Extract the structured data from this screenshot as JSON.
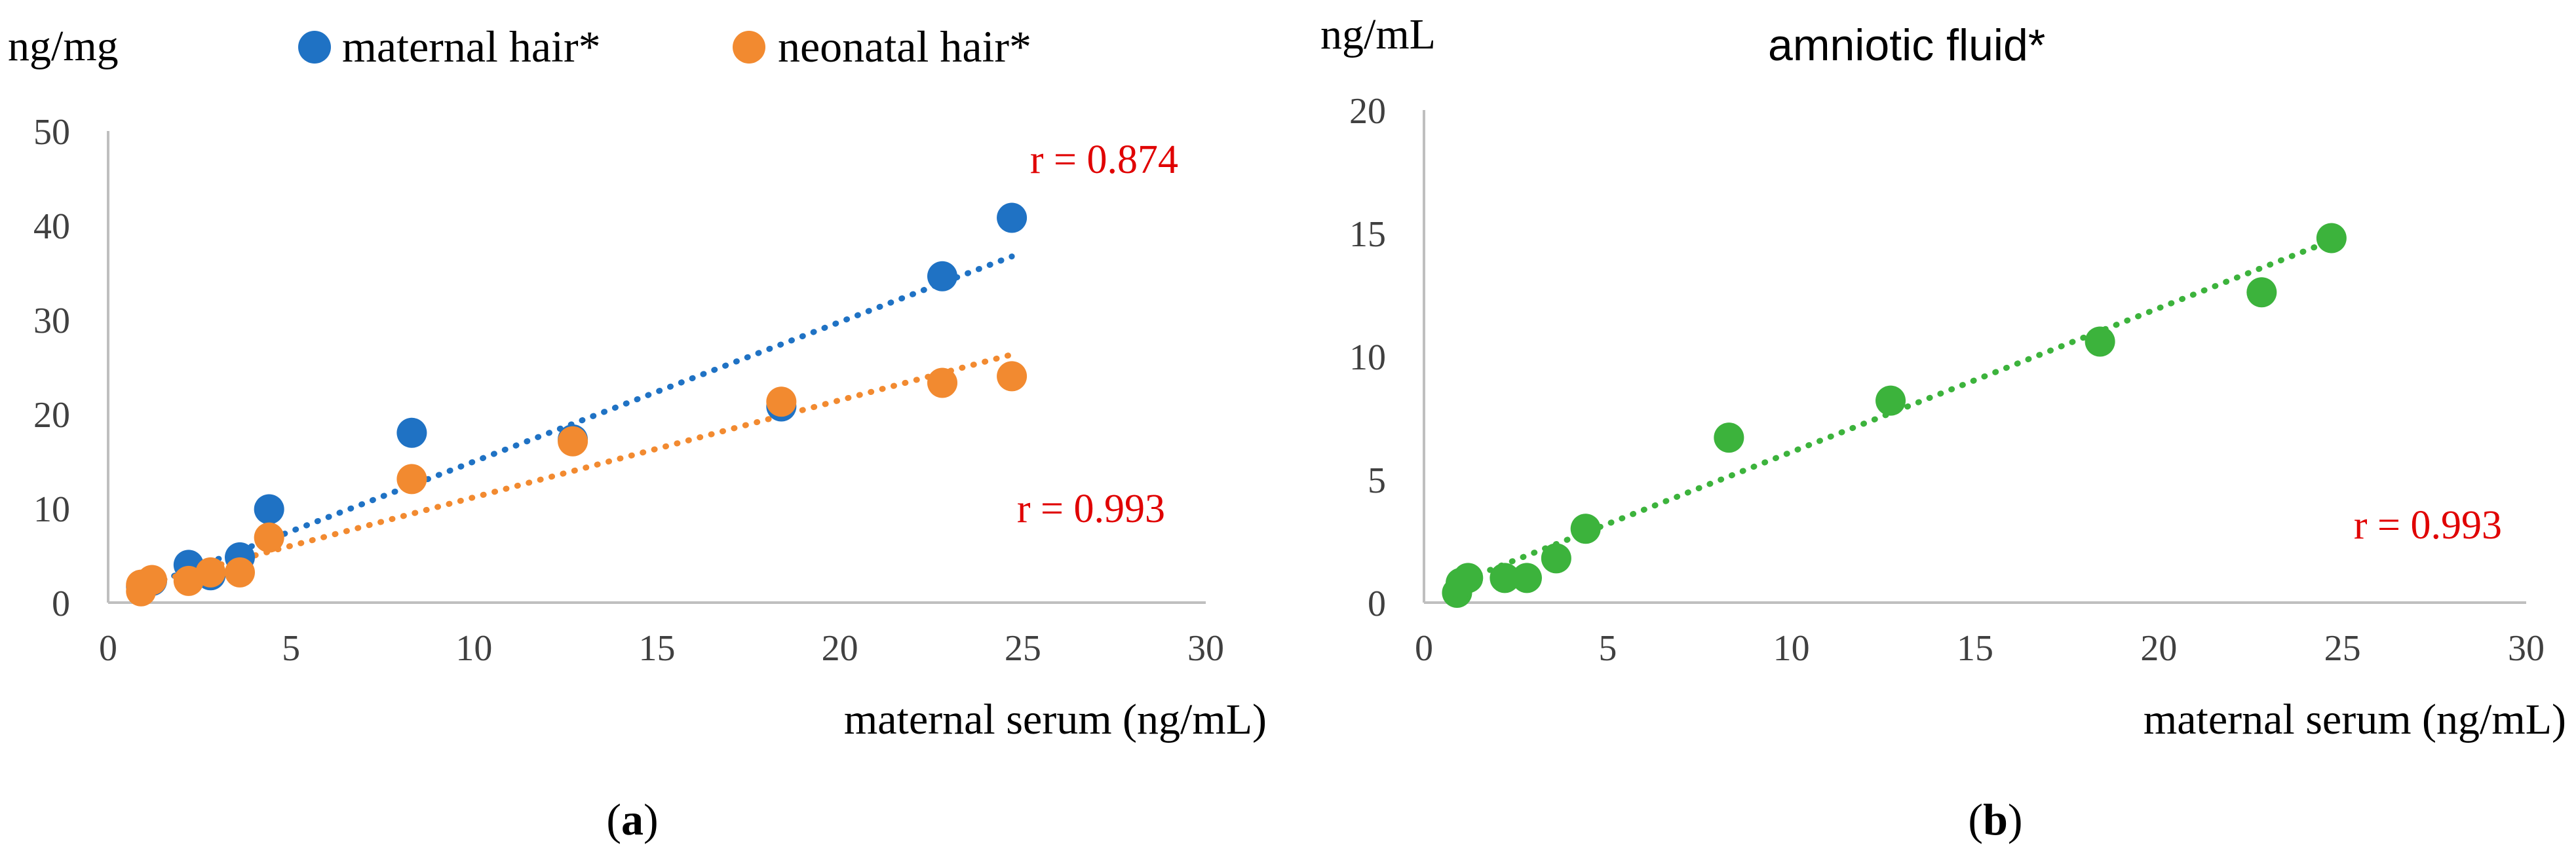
{
  "chart_data": [
    {
      "type": "scatter",
      "panel_label": "a",
      "y_unit": "ng/mg",
      "xlabel": "maternal serum (ng/mL)",
      "xlim": [
        0,
        30
      ],
      "ylim": [
        0,
        50
      ],
      "x_ticks": [
        0,
        5,
        10,
        15,
        20,
        25,
        30
      ],
      "y_ticks": [
        0,
        10,
        20,
        30,
        40,
        50
      ],
      "grid": false,
      "legend_position": "top",
      "series": [
        {
          "name": "maternal hair*",
          "color": "#1f72c4",
          "trendline": true,
          "points": [
            {
              "x": 0.9,
              "y": 1.7
            },
            {
              "x": 1.2,
              "y": 2.3
            },
            {
              "x": 2.2,
              "y": 4.0
            },
            {
              "x": 2.8,
              "y": 2.9
            },
            {
              "x": 3.6,
              "y": 4.8
            },
            {
              "x": 4.4,
              "y": 9.9
            },
            {
              "x": 8.3,
              "y": 18.0
            },
            {
              "x": 12.7,
              "y": 17.3
            },
            {
              "x": 18.4,
              "y": 20.8
            },
            {
              "x": 22.8,
              "y": 34.6
            },
            {
              "x": 24.7,
              "y": 40.8
            }
          ],
          "fit_line": {
            "x_start": 0.9,
            "x_end": 24.7,
            "y_start": 1.5,
            "y_end": 36.7
          },
          "r_label": "r = 0.874"
        },
        {
          "name": "neonatal hair*",
          "color": "#f28a30",
          "trendline": true,
          "points": [
            {
              "x": 0.9,
              "y": 1.2
            },
            {
              "x": 0.9,
              "y": 1.9
            },
            {
              "x": 1.2,
              "y": 2.4
            },
            {
              "x": 2.2,
              "y": 2.3
            },
            {
              "x": 2.8,
              "y": 3.2
            },
            {
              "x": 3.6,
              "y": 3.2
            },
            {
              "x": 4.4,
              "y": 6.9
            },
            {
              "x": 8.3,
              "y": 13.1
            },
            {
              "x": 12.7,
              "y": 17.1
            },
            {
              "x": 18.4,
              "y": 21.3
            },
            {
              "x": 22.8,
              "y": 23.3
            },
            {
              "x": 24.7,
              "y": 24.0
            }
          ],
          "fit_line": {
            "x_start": 0.9,
            "x_end": 24.7,
            "y_start": 1.8,
            "y_end": 26.3
          },
          "r_label": "r = 0.993"
        }
      ]
    },
    {
      "type": "scatter",
      "panel_label": "b",
      "y_unit": "ng/mL",
      "title": "amniotic fluid*",
      "xlabel": "maternal serum (ng/mL)",
      "xlim": [
        0,
        30
      ],
      "ylim": [
        0,
        20
      ],
      "x_ticks": [
        0,
        5,
        10,
        15,
        20,
        25,
        30
      ],
      "y_ticks": [
        0,
        5,
        10,
        15,
        20
      ],
      "grid": false,
      "series": [
        {
          "name": "amniotic fluid*",
          "color": "#3cb33c",
          "trendline": true,
          "points": [
            {
              "x": 0.9,
              "y": 0.4
            },
            {
              "x": 1.0,
              "y": 0.8
            },
            {
              "x": 1.2,
              "y": 1.0
            },
            {
              "x": 2.2,
              "y": 1.0
            },
            {
              "x": 2.8,
              "y": 1.0
            },
            {
              "x": 3.6,
              "y": 1.8
            },
            {
              "x": 4.4,
              "y": 3.0
            },
            {
              "x": 8.3,
              "y": 6.7
            },
            {
              "x": 12.7,
              "y": 8.2
            },
            {
              "x": 18.4,
              "y": 10.6
            },
            {
              "x": 22.8,
              "y": 12.6
            },
            {
              "x": 24.7,
              "y": 14.8
            }
          ],
          "fit_line": {
            "x_start": 0.9,
            "x_end": 24.7,
            "y_start": 0.8,
            "y_end": 14.7
          },
          "r_label": "r = 0.993"
        }
      ]
    }
  ]
}
